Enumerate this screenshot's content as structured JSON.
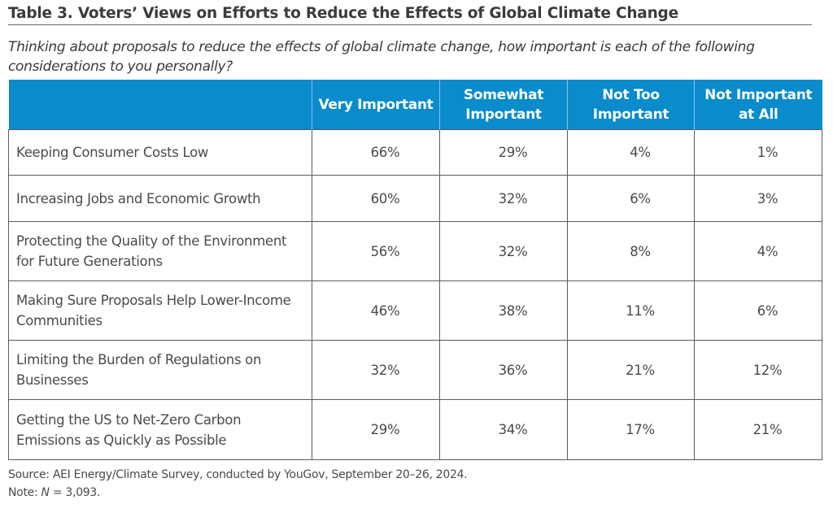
{
  "title": "Table 3. Voters’ Views on Efforts to Reduce the Effects of Global Climate Change",
  "subtitle": "Thinking about proposals to reduce the effects of global climate change, how important is each of the following considerations to you personally?",
  "table": {
    "header_color": "#0a8bcc",
    "columns": [
      "",
      "Very Important",
      "Somewhat Important",
      "Not Too Important",
      "Not Important at All"
    ],
    "rows": [
      {
        "label": "Keeping Consumer Costs Low",
        "values": [
          "66%",
          "29%",
          "4%",
          "1%"
        ]
      },
      {
        "label": "Increasing Jobs and Economic Growth",
        "values": [
          "60%",
          "32%",
          "6%",
          "3%"
        ]
      },
      {
        "label": "Protecting the Quality of the Environment for Future Generations",
        "values": [
          "56%",
          "32%",
          "8%",
          "4%"
        ]
      },
      {
        "label": "Making Sure Proposals Help Lower-Income Communities",
        "values": [
          "46%",
          "38%",
          "11%",
          "6%"
        ]
      },
      {
        "label": "Limiting the Burden of Regulations on Businesses",
        "values": [
          "32%",
          "36%",
          "21%",
          "12%"
        ]
      },
      {
        "label": "Getting the US to Net-Zero Carbon Emissions as Quickly as Possible",
        "values": [
          "29%",
          "34%",
          "17%",
          "21%"
        ]
      }
    ]
  },
  "footer": {
    "source": "Source: AEI Energy/Climate Survey, conducted by YouGov, September 20–26, 2024.",
    "note_prefix": "Note: ",
    "note_n": "N",
    "note_rest": " = 3,093."
  }
}
